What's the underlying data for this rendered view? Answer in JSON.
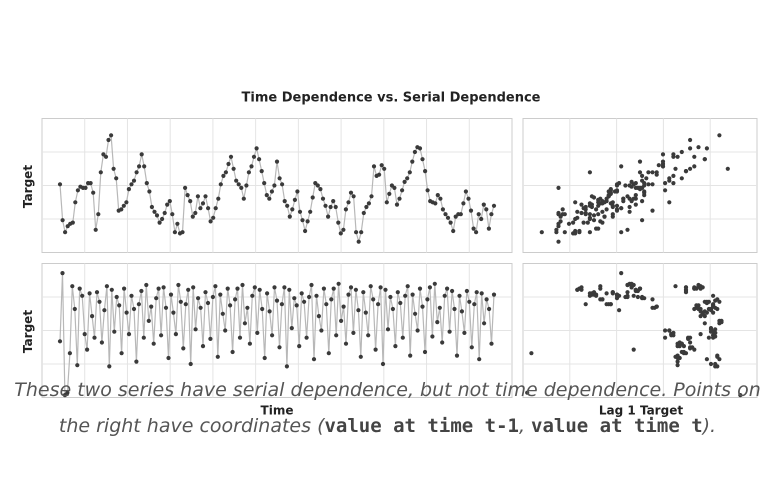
{
  "figure": {
    "title": "Time Dependence vs. Serial Dependence",
    "axis_labels": {
      "top_left_ylabel": "Target",
      "bottom_left_ylabel": "Target",
      "bottom_left_xlabel": "Time",
      "bottom_right_xlabel": "Lag 1 Target"
    },
    "colors": {
      "point": "#3a3a3a",
      "line": "#b8b8b8",
      "grid": "#e4e4e4",
      "frame": "#cccccc",
      "title": "#222222"
    }
  },
  "caption": {
    "part1": "These two series have serial dependence, but not time dependence. Points on the right have coordinates ",
    "open_paren": "(",
    "code1": "value at time t-1",
    "comma": ", ",
    "code2": "value at time t",
    "close": ")."
  },
  "chart_data": [
    {
      "type": "line",
      "panel": "top-left",
      "ylabel": "Target",
      "markers": true,
      "grid": true,
      "y": [
        0.45,
        0.15,
        0.05,
        0.1,
        0.12,
        0.13,
        0.3,
        0.4,
        0.43,
        0.42,
        0.42,
        0.46,
        0.46,
        0.38,
        0.07,
        0.2,
        0.55,
        0.7,
        0.68,
        0.82,
        0.86,
        0.58,
        0.5,
        0.23,
        0.24,
        0.27,
        0.3,
        0.41,
        0.45,
        0.48,
        0.55,
        0.6,
        0.7,
        0.6,
        0.46,
        0.39,
        0.26,
        0.22,
        0.19,
        0.13,
        0.16,
        0.21,
        0.28,
        0.31,
        0.2,
        0.05,
        0.12,
        0.04,
        0.05,
        0.42,
        0.36,
        0.31,
        0.18,
        0.21,
        0.35,
        0.25,
        0.29,
        0.35,
        0.25,
        0.14,
        0.17,
        0.25,
        0.33,
        0.45,
        0.52,
        0.55,
        0.62,
        0.68,
        0.58,
        0.48,
        0.45,
        0.42,
        0.33,
        0.44,
        0.55,
        0.6,
        0.68,
        0.75,
        0.66,
        0.56,
        0.46,
        0.36,
        0.33,
        0.39,
        0.44,
        0.64,
        0.5,
        0.45,
        0.31,
        0.27,
        0.18,
        0.24,
        0.32,
        0.39,
        0.22,
        0.15,
        0.06,
        0.14,
        0.22,
        0.34,
        0.46,
        0.44,
        0.41,
        0.33,
        0.27,
        0.18,
        0.26,
        0.31,
        0.26,
        0.13,
        0.04,
        0.07,
        0.24,
        0.3,
        0.38,
        0.35,
        0.05,
        -0.03,
        0.05,
        0.21,
        0.26,
        0.29,
        0.35,
        0.6,
        0.52,
        0.53,
        0.61,
        0.58,
        0.3,
        0.37,
        0.44,
        0.42,
        0.28,
        0.33,
        0.4,
        0.47,
        0.5,
        0.55,
        0.64,
        0.72,
        0.76,
        0.75,
        0.66,
        0.56,
        0.4,
        0.31,
        0.3,
        0.29,
        0.36,
        0.33,
        0.24,
        0.2,
        0.17,
        0.13,
        0.06,
        0.18,
        0.2,
        0.2,
        0.29,
        0.39,
        0.33,
        0.23,
        0.08,
        0.05,
        0.2,
        0.16,
        0.28,
        0.24,
        0.08,
        0.2,
        0.27
      ],
      "ylim": [
        -0.12,
        1.0
      ]
    },
    {
      "type": "scatter",
      "panel": "top-right",
      "xlabel": "",
      "grid": true,
      "xlim": [
        -0.12,
        1.0
      ],
      "ylim": [
        -0.12,
        1.0
      ]
    },
    {
      "type": "line",
      "panel": "bottom-left",
      "xlabel": "Time",
      "ylabel": "Target",
      "markers": true,
      "grid": true,
      "y": [
        0.35,
        0.92,
        -0.1,
        -0.08,
        0.25,
        0.81,
        0.62,
        0.15,
        0.79,
        0.73,
        0.41,
        0.28,
        0.75,
        0.56,
        0.38,
        0.76,
        0.68,
        0.34,
        0.61,
        0.81,
        0.14,
        0.78,
        0.43,
        0.72,
        0.65,
        0.25,
        0.79,
        0.59,
        0.41,
        0.73,
        0.62,
        0.18,
        0.66,
        0.77,
        0.38,
        0.82,
        0.52,
        0.64,
        0.33,
        0.71,
        0.79,
        0.4,
        0.8,
        0.63,
        0.21,
        0.74,
        0.59,
        0.41,
        0.82,
        0.68,
        0.29,
        0.66,
        0.78,
        0.16,
        0.8,
        0.45,
        0.71,
        0.63,
        0.31,
        0.76,
        0.67,
        0.37,
        0.72,
        0.81,
        0.22,
        0.74,
        0.58,
        0.44,
        0.79,
        0.65,
        0.26,
        0.7,
        0.79,
        0.38,
        0.82,
        0.5,
        0.63,
        0.33,
        0.73,
        0.8,
        0.42,
        0.78,
        0.62,
        0.21,
        0.75,
        0.6,
        0.4,
        0.8,
        0.69,
        0.3,
        0.66,
        0.8,
        0.14,
        0.78,
        0.46,
        0.71,
        0.65,
        0.31,
        0.75,
        0.68,
        0.38,
        0.72,
        0.82,
        0.2,
        0.73,
        0.56,
        0.44,
        0.79,
        0.66,
        0.25,
        0.7,
        0.79,
        0.4,
        0.83,
        0.52,
        0.64,
        0.33,
        0.74,
        0.8,
        0.42,
        0.78,
        0.61,
        0.22,
        0.76,
        0.59,
        0.4,
        0.81,
        0.7,
        0.28,
        0.66,
        0.8,
        0.16,
        0.78,
        0.45,
        0.72,
        0.62,
        0.31,
        0.76,
        0.67,
        0.38,
        0.73,
        0.81,
        0.23,
        0.74,
        0.58,
        0.44,
        0.79,
        0.64,
        0.26,
        0.7,
        0.8,
        0.39,
        0.83,
        0.51,
        0.63,
        0.34,
        0.73,
        0.79,
        0.43,
        0.77,
        0.62,
        0.23,
        0.73,
        0.6,
        0.42,
        0.77,
        0.68,
        0.3,
        0.66,
        0.76,
        0.2,
        0.75,
        0.5,
        0.7,
        0.62,
        0.33,
        0.74
      ],
      "ylim": [
        -0.12,
        1.0
      ]
    },
    {
      "type": "scatter",
      "panel": "bottom-right",
      "xlabel": "Lag 1 Target",
      "grid": true,
      "xlim": [
        -0.12,
        1.0
      ],
      "ylim": [
        -0.12,
        1.0
      ]
    }
  ]
}
